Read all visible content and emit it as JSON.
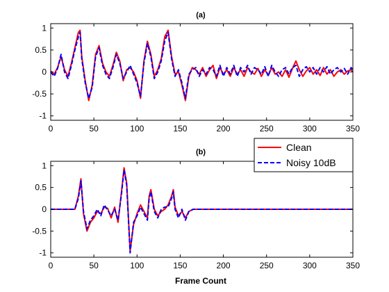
{
  "colors": {
    "clean": "#ff0000",
    "noisy": "#0000ff"
  },
  "legend": {
    "placement": "top-right of lower panel",
    "entries": [
      {
        "label": "Clean",
        "style": "solid",
        "color": "#ff0000"
      },
      {
        "label": "Noisy 10dB",
        "style": "dashed",
        "color": "#0000ff"
      }
    ]
  },
  "chart_data": [
    {
      "type": "line",
      "title": "(a)",
      "xlabel": "",
      "ylabel": "",
      "xlim": [
        0,
        350
      ],
      "ylim": [
        -1.1,
        1.1
      ],
      "xticks": [
        0,
        50,
        100,
        150,
        200,
        250,
        300,
        350
      ],
      "yticks": [
        -1,
        -0.5,
        0,
        0.5,
        1
      ],
      "xtick_labels": [
        "0",
        "50",
        "100",
        "150",
        "200",
        "250",
        "300",
        "350"
      ],
      "ytick_labels": [
        "-1",
        "-0.5",
        "0",
        "0.5",
        "1"
      ],
      "grid": false,
      "series": [
        {
          "name": "Clean",
          "x": [
            0,
            4,
            8,
            12,
            16,
            20,
            24,
            28,
            32,
            34,
            36,
            40,
            44,
            48,
            52,
            56,
            60,
            64,
            68,
            72,
            76,
            80,
            84,
            88,
            92,
            96,
            100,
            104,
            108,
            112,
            116,
            120,
            124,
            128,
            132,
            136,
            140,
            144,
            148,
            152,
            156,
            160,
            164,
            168,
            172,
            176,
            180,
            184,
            188,
            192,
            196,
            200,
            204,
            208,
            212,
            216,
            220,
            224,
            228,
            232,
            236,
            240,
            244,
            248,
            252,
            256,
            260,
            264,
            268,
            272,
            276,
            280,
            284,
            288,
            292,
            296,
            300,
            304,
            308,
            312,
            316,
            320,
            324,
            328,
            332,
            336,
            340,
            344,
            348,
            350
          ],
          "y": [
            0.02,
            -0.05,
            0.1,
            0.35,
            0.05,
            -0.1,
            0.2,
            0.55,
            0.9,
            0.95,
            0.35,
            -0.2,
            -0.65,
            -0.3,
            0.4,
            0.6,
            0.2,
            0.0,
            -0.1,
            0.15,
            0.45,
            0.25,
            -0.2,
            0.05,
            0.1,
            0.0,
            -0.2,
            -0.6,
            0.25,
            0.7,
            0.4,
            -0.1,
            0.05,
            0.3,
            0.8,
            0.95,
            0.35,
            -0.05,
            0.0,
            -0.3,
            -0.65,
            -0.1,
            0.1,
            0.05,
            -0.05,
            0.1,
            -0.1,
            0.05,
            0.15,
            -0.15,
            0.1,
            -0.05,
            0.05,
            -0.1,
            0.1,
            -0.05,
            0.05,
            -0.1,
            0.1,
            0.0,
            -0.05,
            0.08,
            -0.1,
            0.05,
            -0.08,
            0.1,
            -0.05,
            0.0,
            -0.1,
            0.05,
            -0.12,
            0.08,
            0.25,
            0.05,
            -0.1,
            0.02,
            0.1,
            -0.05,
            0.05,
            -0.08,
            0.1,
            -0.05,
            0.05,
            -0.1,
            0.0,
            0.05,
            -0.05,
            0.02,
            0.05,
            0.0
          ]
        },
        {
          "name": "Noisy 10dB",
          "x": [
            0,
            4,
            8,
            12,
            16,
            20,
            24,
            28,
            32,
            34,
            36,
            40,
            44,
            48,
            52,
            56,
            60,
            64,
            68,
            72,
            76,
            80,
            84,
            88,
            92,
            96,
            100,
            104,
            108,
            112,
            116,
            120,
            124,
            128,
            132,
            136,
            140,
            144,
            148,
            152,
            156,
            160,
            164,
            168,
            172,
            176,
            180,
            184,
            188,
            192,
            196,
            200,
            204,
            208,
            212,
            216,
            220,
            224,
            228,
            232,
            236,
            240,
            244,
            248,
            252,
            256,
            260,
            264,
            268,
            272,
            276,
            280,
            284,
            288,
            292,
            296,
            300,
            304,
            308,
            312,
            316,
            320,
            324,
            328,
            332,
            336,
            340,
            344,
            348,
            350
          ],
          "y": [
            0.0,
            -0.1,
            0.08,
            0.4,
            0.0,
            -0.15,
            0.15,
            0.5,
            0.8,
            0.9,
            0.3,
            -0.25,
            -0.6,
            -0.35,
            0.35,
            0.55,
            0.15,
            -0.05,
            -0.15,
            0.1,
            0.4,
            0.2,
            -0.15,
            0.0,
            0.15,
            -0.05,
            -0.25,
            -0.55,
            0.2,
            0.65,
            0.35,
            -0.15,
            0.0,
            0.25,
            0.7,
            0.9,
            0.3,
            -0.1,
            0.05,
            -0.25,
            -0.6,
            -0.05,
            0.05,
            0.1,
            -0.1,
            0.05,
            -0.05,
            0.1,
            0.05,
            -0.1,
            0.15,
            -0.1,
            0.1,
            -0.05,
            0.15,
            -0.1,
            0.1,
            0.0,
            0.15,
            -0.05,
            0.1,
            0.05,
            -0.05,
            0.12,
            -0.1,
            0.15,
            0.0,
            -0.1,
            0.05,
            0.1,
            -0.05,
            0.1,
            0.15,
            -0.1,
            0.05,
            0.12,
            0.0,
            0.1,
            -0.05,
            0.1,
            0.0,
            0.12,
            -0.05,
            0.05,
            0.1,
            0.0,
            0.08,
            -0.05,
            0.1,
            0.05
          ]
        }
      ]
    },
    {
      "type": "line",
      "title": "(b)",
      "xlabel": "Frame Count",
      "ylabel": "",
      "xlim": [
        0,
        350
      ],
      "ylim": [
        -1.1,
        1.1
      ],
      "xticks": [
        0,
        50,
        100,
        150,
        200,
        250,
        300,
        350
      ],
      "yticks": [
        -1,
        -0.5,
        0,
        0.5,
        1
      ],
      "xtick_labels": [
        "0",
        "50",
        "100",
        "150",
        "200",
        "250",
        "300",
        "350"
      ],
      "ytick_labels": [
        "-1",
        "-0.5",
        "0",
        "0.5",
        "1"
      ],
      "grid": false,
      "series": [
        {
          "name": "Clean",
          "x": [
            0,
            10,
            20,
            28,
            32,
            35,
            38,
            42,
            46,
            50,
            54,
            58,
            62,
            66,
            70,
            74,
            78,
            82,
            85,
            88,
            92,
            96,
            100,
            104,
            108,
            112,
            114,
            116,
            120,
            124,
            128,
            132,
            136,
            140,
            142,
            144,
            148,
            152,
            156,
            160,
            165,
            170,
            180,
            200,
            220,
            240,
            260,
            280,
            300,
            320,
            340,
            350
          ],
          "y": [
            0,
            0,
            0,
            0.0,
            0.3,
            0.7,
            -0.1,
            -0.5,
            -0.3,
            -0.2,
            -0.05,
            -0.1,
            0.05,
            0.02,
            -0.2,
            0.05,
            -0.3,
            0.4,
            0.95,
            0.6,
            -0.95,
            -0.35,
            -0.1,
            0.1,
            -0.05,
            -0.2,
            0.3,
            0.45,
            0.0,
            -0.15,
            -0.05,
            0.0,
            0.1,
            0.3,
            0.45,
            0.05,
            -0.15,
            -0.05,
            -0.2,
            -0.05,
            0.0,
            0.0,
            0,
            0,
            0,
            0,
            0,
            0,
            0,
            0,
            0,
            0
          ]
        },
        {
          "name": "Noisy 10dB",
          "x": [
            0,
            10,
            20,
            28,
            32,
            35,
            38,
            42,
            46,
            50,
            54,
            58,
            62,
            66,
            70,
            74,
            78,
            82,
            85,
            88,
            92,
            96,
            100,
            104,
            108,
            112,
            114,
            116,
            120,
            124,
            128,
            132,
            136,
            140,
            142,
            144,
            148,
            152,
            156,
            160,
            165,
            170,
            180,
            200,
            220,
            240,
            260,
            280,
            300,
            320,
            340,
            350
          ],
          "y": [
            0,
            0,
            0,
            0.0,
            0.25,
            0.65,
            -0.05,
            -0.45,
            -0.25,
            -0.15,
            0.0,
            -0.15,
            0.1,
            -0.02,
            -0.15,
            0.0,
            -0.25,
            0.35,
            0.9,
            0.55,
            -1.0,
            -0.3,
            -0.15,
            0.05,
            -0.1,
            -0.25,
            0.25,
            0.4,
            -0.05,
            -0.2,
            0.0,
            0.05,
            0.05,
            0.25,
            0.4,
            0.0,
            -0.2,
            0.0,
            -0.25,
            -0.05,
            0.0,
            0.0,
            0,
            0,
            0,
            0,
            0,
            0,
            0,
            0,
            0,
            0
          ]
        }
      ]
    }
  ]
}
